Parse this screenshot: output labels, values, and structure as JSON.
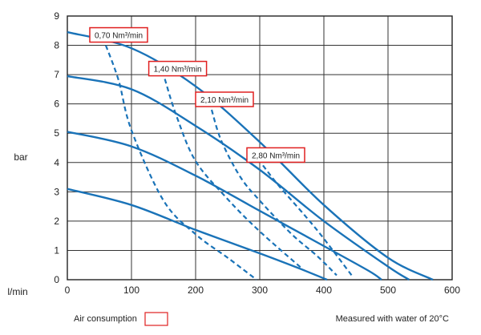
{
  "chart_data": {
    "type": "line",
    "title": "",
    "xlabel": "l/min",
    "ylabel": "bar",
    "xlim": [
      0,
      600
    ],
    "ylim": [
      0,
      9
    ],
    "x_ticks": [
      0,
      100,
      200,
      300,
      400,
      500,
      600
    ],
    "y_ticks": [
      0,
      1,
      2,
      3,
      4,
      5,
      6,
      7,
      8,
      9
    ],
    "grid": true,
    "line_color": "#1a73b8",
    "label_box_color": "#e02020",
    "series": [
      {
        "x": [
          0,
          100,
          200,
          300,
          400,
          500,
          570
        ],
        "y": [
          8.45,
          7.9,
          6.6,
          4.7,
          2.55,
          0.75,
          0
        ]
      },
      {
        "x": [
          0,
          100,
          200,
          300,
          400,
          500,
          533
        ],
        "y": [
          6.95,
          6.5,
          5.25,
          3.75,
          2.0,
          0.45,
          0
        ]
      },
      {
        "x": [
          0,
          100,
          200,
          300,
          400,
          470,
          490
        ],
        "y": [
          5.05,
          4.55,
          3.55,
          2.35,
          1.15,
          0.3,
          0
        ]
      },
      {
        "x": [
          0,
          100,
          200,
          300,
          360,
          405
        ],
        "y": [
          3.1,
          2.55,
          1.7,
          0.9,
          0.4,
          0
        ]
      }
    ],
    "air_consumption": [
      {
        "label": "0,70 Nm³/min",
        "x": [
          60,
          80,
          100,
          150,
          200,
          250,
          295
        ],
        "y": [
          8.0,
          6.8,
          5.1,
          2.7,
          1.55,
          0.75,
          0
        ]
      },
      {
        "label": "1,40 Nm³/min",
        "x": [
          152,
          170,
          200,
          250,
          300,
          365
        ],
        "y": [
          6.85,
          5.6,
          4.05,
          2.75,
          1.65,
          0.4
        ]
      },
      {
        "label": "2,10 Nm³/min",
        "x": [
          225,
          240,
          270,
          300,
          350,
          390,
          420
        ],
        "y": [
          5.8,
          4.75,
          3.5,
          2.7,
          1.55,
          0.8,
          0.15
        ]
      },
      {
        "label": "2,80 Nm³/min",
        "x": [
          305,
          330,
          370,
          400,
          445
        ],
        "y": [
          3.9,
          3.2,
          2.2,
          1.4,
          0.1
        ]
      }
    ]
  },
  "legend": {
    "air_consumption_label": "Air consumption",
    "note": "Measured with water of 20°C"
  }
}
